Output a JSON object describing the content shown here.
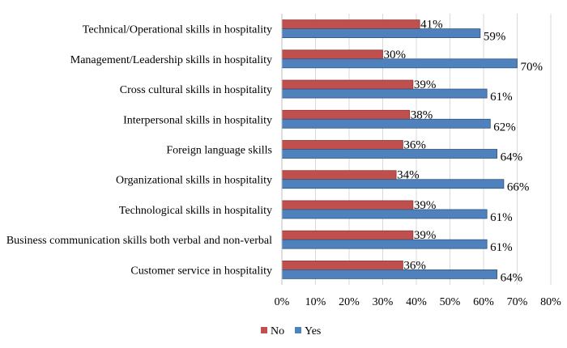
{
  "chart_data": {
    "type": "bar",
    "orientation": "horizontal",
    "title": "",
    "xlabel": "",
    "ylabel": "",
    "xlim": [
      0,
      80
    ],
    "x_ticks": [
      "0%",
      "10%",
      "20%",
      "30%",
      "40%",
      "50%",
      "60%",
      "70%",
      "80%"
    ],
    "grid": true,
    "legend_position": "bottom-center",
    "categories": [
      "Technical/Operational skills in hospitality",
      "Management/Leadership skills in hospitality",
      "Cross cultural skills in hospitality",
      "Interpersonal skills in hospitality",
      "Foreign language skills",
      "Organizational skills in hospitality",
      "Technological skills in hospitality",
      "Business communication skills both verbal and non-verbal",
      "Customer service in hospitality"
    ],
    "series": [
      {
        "name": "No",
        "color": "#C0504D",
        "values": [
          41,
          30,
          39,
          38,
          36,
          34,
          39,
          39,
          36
        ],
        "labels": [
          "41%",
          "30%",
          "39%",
          "38%",
          "36%",
          "34%",
          "39%",
          "39%",
          "36%"
        ]
      },
      {
        "name": "Yes",
        "color": "#4F81BD",
        "values": [
          59,
          70,
          61,
          62,
          64,
          66,
          61,
          61,
          64
        ],
        "labels": [
          "59%",
          "70%",
          "61%",
          "62%",
          "64%",
          "66%",
          "61%",
          "61%",
          "64%"
        ]
      }
    ]
  }
}
